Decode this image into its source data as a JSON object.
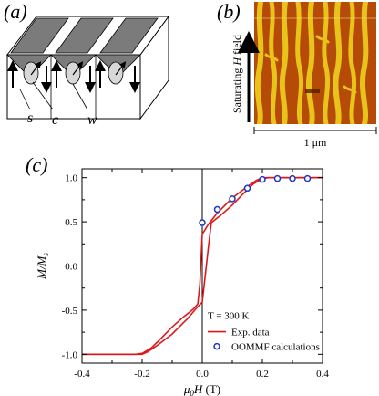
{
  "panels": {
    "a": {
      "label": "(a)",
      "markers": [
        "s",
        "c",
        "w"
      ]
    },
    "b": {
      "label": "(b)",
      "side_label_prefix": "Saturating ",
      "side_label_var": "H",
      "side_label_suffix": " field",
      "scale_bar": "1 μm"
    },
    "c": {
      "label": "(c)"
    }
  },
  "chart_data": {
    "type": "line",
    "xlabel": "μ0H (T)",
    "ylabel": "M/Ms",
    "xlim": [
      -0.4,
      0.4
    ],
    "ylim": [
      -1.1,
      1.1
    ],
    "x_ticks": [
      -0.4,
      -0.2,
      0.0,
      0.2,
      0.4
    ],
    "x_tick_labels": [
      "-0.4",
      "-0.2",
      "0.0",
      "0.2",
      "0.4"
    ],
    "y_ticks": [
      -1.0,
      -0.5,
      0.0,
      0.5,
      1.0
    ],
    "y_tick_labels": [
      "-1.0",
      "-0.5",
      "0.0",
      "0.5",
      "1.0"
    ],
    "annotation": "T = 300 K",
    "legend_position": "bottom-right",
    "series": [
      {
        "name": "Exp. data",
        "style": "line",
        "color": "#e0161b",
        "x": [
          -0.4,
          -0.22,
          -0.2,
          -0.17,
          -0.14,
          -0.1,
          -0.06,
          -0.03,
          -0.015,
          -0.008,
          0.0,
          0.02,
          0.05,
          0.1,
          0.15,
          0.18,
          0.2,
          0.25,
          0.4
        ],
        "y": [
          -1.0,
          -1.0,
          -0.99,
          -0.93,
          -0.83,
          -0.69,
          -0.57,
          -0.49,
          -0.43,
          -0.2,
          0.36,
          0.47,
          0.6,
          0.77,
          0.9,
          0.97,
          1.0,
          1.0,
          1.0
        ]
      },
      {
        "name": "",
        "style": "line",
        "color": "#e0161b",
        "x": [
          0.4,
          0.22,
          0.2,
          0.17,
          0.14,
          0.1,
          0.06,
          0.03,
          0.02,
          0.0,
          -0.02,
          -0.05,
          -0.1,
          -0.15,
          -0.18,
          -0.2,
          -0.25,
          -0.4
        ],
        "y": [
          1.0,
          1.0,
          0.99,
          0.93,
          0.83,
          0.69,
          0.57,
          0.49,
          0.2,
          -0.41,
          -0.48,
          -0.6,
          -0.77,
          -0.9,
          -0.97,
          -1.0,
          -1.0,
          -1.0
        ]
      },
      {
        "name": "OOMMF calculations",
        "style": "marker",
        "color": "#1a35c8",
        "x": [
          0.0,
          0.05,
          0.1,
          0.15,
          0.2,
          0.25,
          0.3,
          0.35
        ],
        "y": [
          0.49,
          0.64,
          0.76,
          0.88,
          0.98,
          0.99,
          0.99,
          0.99
        ]
      }
    ]
  }
}
